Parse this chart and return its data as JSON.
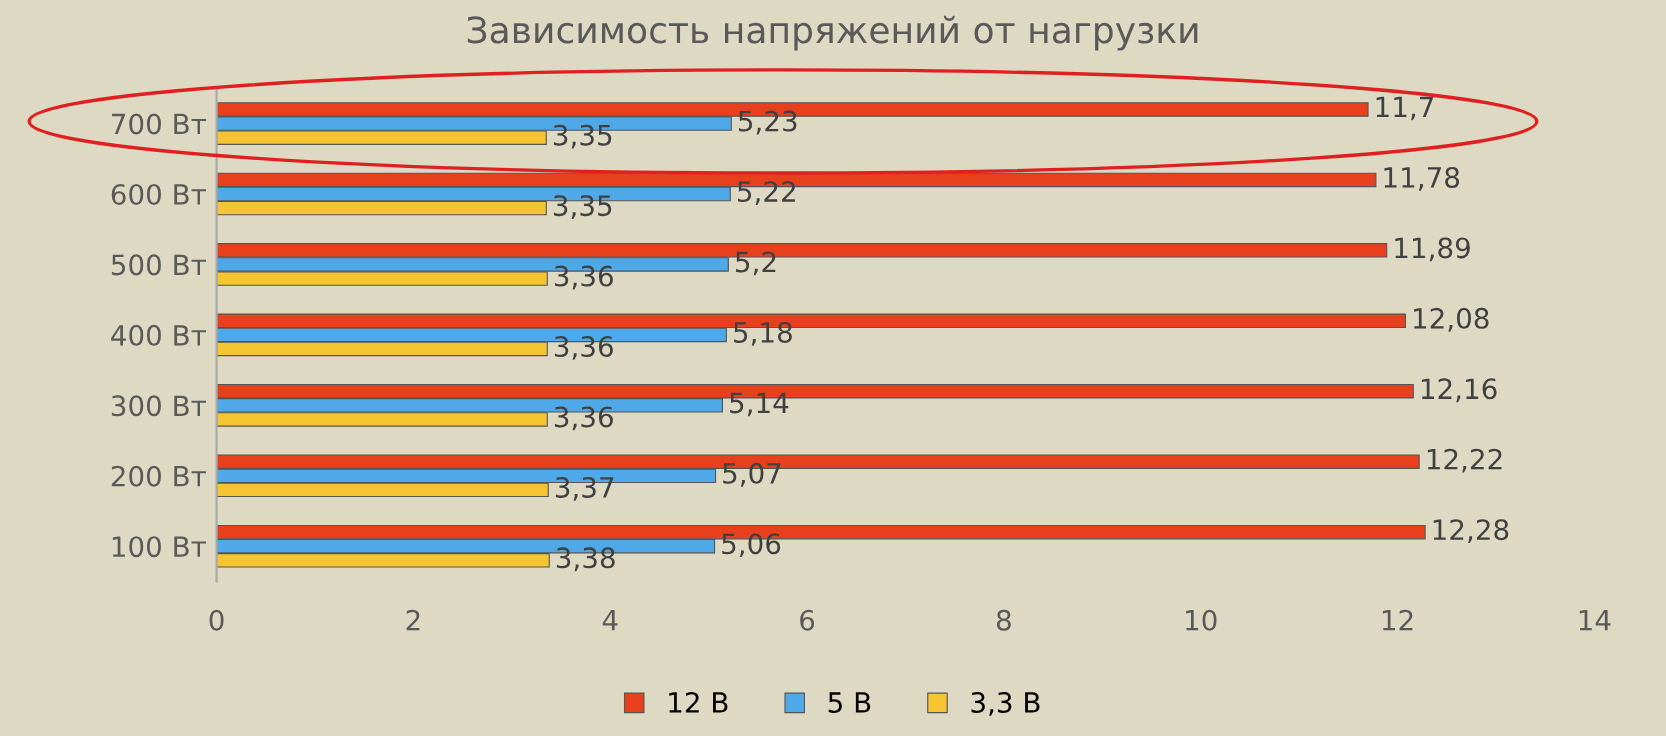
{
  "chart_data": {
    "type": "bar",
    "orientation": "horizontal",
    "title": "Зависимость напряжений от нагрузки",
    "categories": [
      "700 Вт",
      "600 Вт",
      "500 Вт",
      "400 Вт",
      "300 Вт",
      "200 Вт",
      "100 Вт"
    ],
    "series": [
      {
        "name": "12 В",
        "color": "#e8401c",
        "values": [
          11.7,
          11.78,
          11.89,
          12.08,
          12.16,
          12.22,
          12.28
        ],
        "value_labels": [
          "11,7",
          "11,78",
          "11,89",
          "12,08",
          "12,16",
          "12,22",
          "12,28"
        ]
      },
      {
        "name": "5 В",
        "color": "#4fa8e8",
        "values": [
          5.23,
          5.22,
          5.2,
          5.18,
          5.14,
          5.07,
          5.06
        ],
        "value_labels": [
          "5,23",
          "5,22",
          "5,2",
          "5,18",
          "5,14",
          "5,07",
          "5,06"
        ]
      },
      {
        "name": "3,3 В",
        "color": "#f4c531",
        "values": [
          3.35,
          3.35,
          3.36,
          3.36,
          3.36,
          3.37,
          3.38
        ],
        "value_labels": [
          "3,35",
          "3,35",
          "3,36",
          "3,36",
          "3,36",
          "3,37",
          "3,38"
        ]
      }
    ],
    "xlim": [
      0,
      14
    ],
    "xticks": [
      0,
      2,
      4,
      6,
      8,
      10,
      12,
      14
    ],
    "grid": false,
    "legend": "bottom"
  }
}
